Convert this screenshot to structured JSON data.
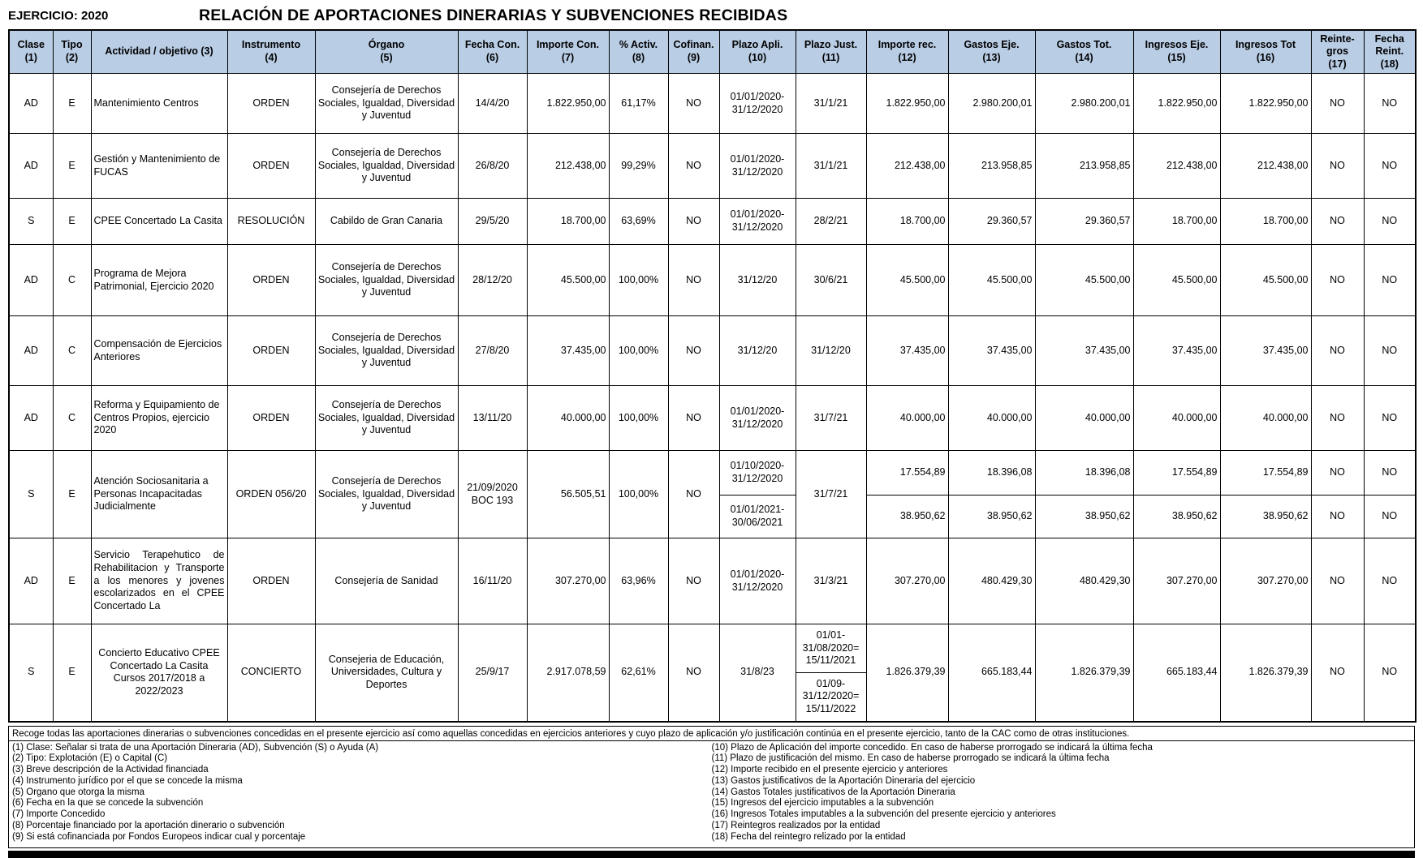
{
  "page": {
    "ejercicio": "EJERCICIO: 2020",
    "title": "RELACIÓN DE APORTACIONES DINERARIAS Y SUBVENCIONES RECIBIDAS"
  },
  "colors": {
    "header_bg": "#b9cde5",
    "border": "#000000",
    "bottom_bar": "#000000"
  },
  "table": {
    "headers": [
      "Clase\n(1)",
      "Tipo\n(2)",
      "Actividad / objetivo (3)",
      "Instrumento\n(4)",
      "Órgano\n(5)",
      "Fecha Con.\n(6)",
      "Importe Con.\n(7)",
      "% Activ.\n(8)",
      "Cofinan.\n(9)",
      "Plazo Apli.\n(10)",
      "Plazo Just.\n(11)",
      "Importe rec.\n(12)",
      "Gastos Eje.\n(13)",
      "Gastos Tot.\n(14)",
      "Ingresos Eje.\n(15)",
      "Ingresos  Tot\n(16)",
      "Reinte-\ngros\n(17)",
      "Fecha\nReint.\n(18)"
    ],
    "rows": [
      {
        "cells": [
          "AD",
          "E",
          "Mantenimiento Centros",
          "ORDEN",
          "Consejería de Derechos Sociales, Igualdad, Diversidad y Juventud",
          "14/4/20",
          "1.822.950,00",
          "61,17%",
          "NO",
          "01/01/2020-\n31/12/2020",
          "31/1/21",
          "1.822.950,00",
          "2.980.200,01",
          "2.980.200,01",
          "1.822.950,00",
          "1.822.950,00",
          "NO",
          "NO"
        ]
      },
      {
        "cells": [
          "AD",
          "E",
          "Gestión y Mantenimiento de FUCAS",
          "ORDEN",
          "Consejería de Derechos Sociales, Igualdad, Diversidad y Juventud",
          "26/8/20",
          "212.438,00",
          "99,29%",
          "NO",
          "01/01/2020-\n31/12/2020",
          "31/1/21",
          "212.438,00",
          "213.958,85",
          "213.958,85",
          "212.438,00",
          "212.438,00",
          "NO",
          "NO"
        ]
      },
      {
        "cells": [
          "S",
          "E",
          "CPEE Concertado La Casita",
          "RESOLUCIÓN",
          "Cabildo de Gran Canaria",
          "29/5/20",
          "18.700,00",
          "63,69%",
          "NO",
          "01/01/2020-\n31/12/2020",
          "28/2/21",
          "18.700,00",
          "29.360,57",
          "29.360,57",
          "18.700,00",
          "18.700,00",
          "NO",
          "NO"
        ]
      },
      {
        "cells": [
          "AD",
          "C",
          "Programa de Mejora Patrimonial, Ejercicio 2020",
          "ORDEN",
          "Consejería de Derechos Sociales, Igualdad, Diversidad y Juventud",
          "28/12/20",
          "45.500,00",
          "100,00%",
          "NO",
          "31/12/20",
          "30/6/21",
          "45.500,00",
          "45.500,00",
          "45.500,00",
          "45.500,00",
          "45.500,00",
          "NO",
          "NO"
        ]
      },
      {
        "cells": [
          "AD",
          "C",
          "Compensación de Ejercicios Anteriores",
          "ORDEN",
          "Consejería de Derechos Sociales, Igualdad, Diversidad y Juventud",
          "27/8/20",
          "37.435,00",
          "100,00%",
          "NO",
          "31/12/20",
          "31/12/20",
          "37.435,00",
          "37.435,00",
          "37.435,00",
          "37.435,00",
          "37.435,00",
          "NO",
          "NO"
        ]
      },
      {
        "cells": [
          "AD",
          "C",
          "Reforma y Equipamiento de Centros Propios, ejercicio 2020",
          "ORDEN",
          "Consejería de Derechos Sociales, Igualdad, Diversidad y Juventud",
          "13/11/20",
          "40.000,00",
          "100,00%",
          "NO",
          "01/01/2020-\n31/12/2020",
          "31/7/21",
          "40.000,00",
          "40.000,00",
          "40.000,00",
          "40.000,00",
          "40.000,00",
          "NO",
          "NO"
        ]
      },
      {
        "cells": [
          {
            "t": "S",
            "rs": 2
          },
          {
            "t": "E",
            "rs": 2
          },
          {
            "t": "Atención Sociosanitaria a Personas Incapacitadas Judicialmente",
            "rs": 2
          },
          {
            "t": "ORDEN 056/20",
            "rs": 2
          },
          {
            "t": "Consejería de Derechos Sociales, Igualdad, Diversidad y Juventud",
            "rs": 2
          },
          {
            "t": "21/09/2020\nBOC 193",
            "rs": 2
          },
          {
            "t": "56.505,51",
            "rs": 2
          },
          {
            "t": "100,00%",
            "rs": 2
          },
          {
            "t": "NO",
            "rs": 2
          },
          {
            "t": "01/10/2020-\n31/12/2020"
          },
          {
            "t": "31/7/21",
            "rs": 2
          },
          {
            "t": "17.554,89"
          },
          {
            "t": "18.396,08"
          },
          {
            "t": "18.396,08"
          },
          {
            "t": "17.554,89"
          },
          {
            "t": "17.554,89"
          },
          {
            "t": "NO"
          },
          {
            "t": "NO"
          }
        ]
      },
      {
        "cells": [
          {
            "t": "01/01/2021-\n30/06/2021"
          },
          {
            "t": "38.950,62",
            "a": "r"
          },
          {
            "t": "38.950,62",
            "a": "r"
          },
          {
            "t": "38.950,62",
            "a": "r"
          },
          {
            "t": "38.950,62",
            "a": "r"
          },
          {
            "t": "38.950,62",
            "a": "r"
          },
          {
            "t": "NO"
          },
          {
            "t": "NO"
          }
        ]
      },
      {
        "cells": [
          "AD",
          "E",
          {
            "t": "Servicio Terapehutico de Rehabilitacion y Transporte a los menores y jovenes escolarizados en el CPEE Concertado La",
            "a": "j"
          },
          "ORDEN",
          "Consejería de Sanidad",
          "16/11/20",
          "307.270,00",
          "63,96%",
          "NO",
          "01/01/2020-\n31/12/2020",
          "31/3/21",
          "307.270,00",
          "480.429,30",
          "480.429,30",
          "307.270,00",
          "307.270,00",
          "NO",
          "NO"
        ]
      },
      {
        "cells": [
          {
            "t": "S",
            "rs": 2
          },
          {
            "t": "E",
            "rs": 2
          },
          {
            "t": "Concierto Educativo CPEE Concertado La Casita Cursos 2017/2018 a 2022/2023",
            "rs": 2,
            "a": "c"
          },
          {
            "t": "CONCIERTO",
            "rs": 2
          },
          {
            "t": "Consejeria de Educación, Universidades, Cultura y Deportes",
            "rs": 2
          },
          {
            "t": "25/9/17",
            "rs": 2
          },
          {
            "t": "2.917.078,59",
            "rs": 2
          },
          {
            "t": "62,61%",
            "rs": 2
          },
          {
            "t": "NO",
            "rs": 2
          },
          {
            "t": "31/8/23",
            "rs": 2
          },
          {
            "t": "01/01-\n31/08/2020=\n15/11/2021"
          },
          {
            "t": "1.826.379,39",
            "rs": 2
          },
          {
            "t": "665.183,44",
            "rs": 2
          },
          {
            "t": "1.826.379,39",
            "rs": 2
          },
          {
            "t": "665.183,44",
            "rs": 2
          },
          {
            "t": "1.826.379,39",
            "rs": 2
          },
          {
            "t": "NO",
            "rs": 2
          },
          {
            "t": "NO",
            "rs": 2
          }
        ]
      },
      {
        "cells": [
          {
            "t": "01/09-\n31/12/2020=\n15/11/2022"
          }
        ]
      }
    ]
  },
  "notes": {
    "intro": "Recoge todas las aportaciones dinerarias o subvenciones concedidas en el presente ejercicio así como aquellas concedidas en ejercicios anteriores y cuyo plazo de aplicación y/o justificación continúa en el presente ejercicio, tanto de la CAC como de otras instituciones.",
    "left": [
      "(1) Clase: Señalar si trata de una Aportación Dineraria (AD), Subvención (S) o Ayuda (A)",
      "(2) Tipo: Explotación (E) o Capital (C)",
      "(3) Breve descripción de la Actividad financiada",
      "(4)  Instrumento jurídico por el que se concede la misma",
      "(5) Órgano que otorga la misma",
      "(6) Fecha en la que se concede la subvención",
      "(7) Importe Concedido",
      "(8) Porcentaje financiado por la aportación dinerario o subvención",
      "(9) Si está cofinanciada por Fondos Europeos indicar cual y porcentaje"
    ],
    "right": [
      "(10) Plazo de Aplicación del importe concedido. En caso de haberse prorrogado se indicará la última fecha",
      "(11) Plazo de justificación del mismo. En caso de haberse prorrogado se indicará la última fecha",
      "(12) Importe recibido en el presente ejercicio y anteriores",
      "(13) Gastos justificativos de la Aportación Dineraria del ejercicio",
      "(14) Gastos Totales justificativos de la Aportación Dineraria",
      "(15) Ingresos del ejercicio imputables a la subvención",
      "(16) Ingresos Totales imputables a la subvención del presente ejercicio y anteriores",
      "(17) Reintegros realizados por la entidad",
      "(18) Fecha del reintegro relizado por la entidad"
    ]
  }
}
